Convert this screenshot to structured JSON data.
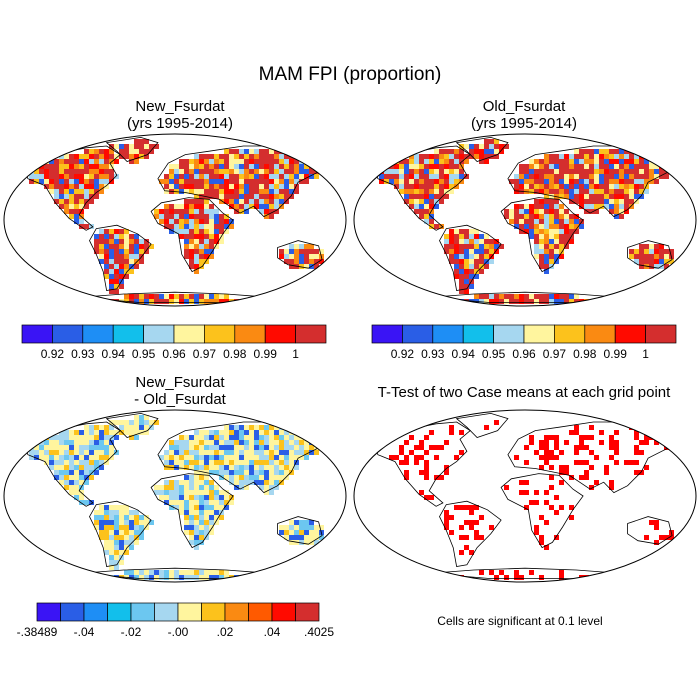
{
  "figure": {
    "title": "MAM FPI (proportion)"
  },
  "panels": [
    {
      "id": "new",
      "title_line1": "New_Fsurdat",
      "title_line2": "(yrs 1995-2014)",
      "field": "fpi"
    },
    {
      "id": "old",
      "title_line1": "Old_Fsurdat",
      "title_line2": "(yrs 1995-2014)",
      "field": "fpi"
    },
    {
      "id": "diff",
      "title_line1": "New_Fsurdat",
      "title_line2": "- Old_Fsurdat",
      "field": "difference"
    },
    {
      "id": "ttest",
      "title_line1": "T-Test of two Case means at each grid point",
      "title_line2": "",
      "field": "significance"
    }
  ],
  "colorbars": {
    "fpi": {
      "colors": [
        "#3a14f5",
        "#2a5ee6",
        "#1e8ef5",
        "#12bfeb",
        "#a6d7f0",
        "#fff59e",
        "#fcc21c",
        "#fa8a12",
        "#ff0a00",
        "#d42e2e"
      ],
      "labels": [
        "0.92",
        "0.93",
        "0.94",
        "0.95",
        "0.96",
        "0.97",
        "0.98",
        "0.99",
        "1"
      ]
    },
    "difference": {
      "colors": [
        "#3a14f5",
        "#2a5ee6",
        "#1e8ef5",
        "#12bfeb",
        "#6cc7f0",
        "#a6d7f0",
        "#fff59e",
        "#fcc21c",
        "#fa8a12",
        "#ff5a00",
        "#ff0a00",
        "#d42e2e"
      ],
      "labels": [
        ".38489",
        "-.04",
        "-.02",
        "-.00",
        ".02",
        ".04",
        ".4025"
      ],
      "first_label_prefix": "-"
    }
  },
  "significance_note": "Cells are significant at 0.1 level",
  "map_colors": {
    "fpi_dominant": "#d42e2e",
    "fpi_mid": "#fcc21c",
    "fpi_low": "#2a5ee6",
    "diff_dominant": "#fff59e",
    "diff_light_blue": "#a6d7f0",
    "significant": "#ff0000",
    "coastline": "#000000"
  }
}
